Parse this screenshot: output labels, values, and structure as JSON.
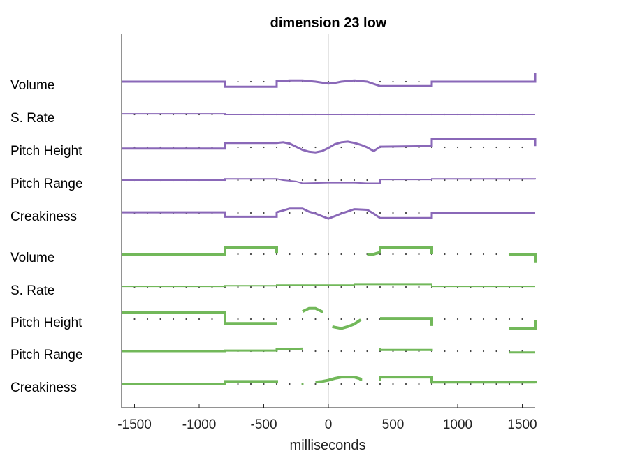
{
  "chart_data": {
    "type": "line",
    "title": "dimension 23 low",
    "xlabel": "milliseconds",
    "ylabel": "",
    "xlim": [
      -1600,
      1600
    ],
    "xticks": [
      -1500,
      -1000,
      -500,
      0,
      500,
      1000,
      1500
    ],
    "zero_line": true,
    "colors": {
      "purple": "#8a68b8",
      "green": "#72b85a"
    },
    "rows": [
      {
        "label": "Volume",
        "color": "purple"
      },
      {
        "label": "S. Rate",
        "color": "purple"
      },
      {
        "label": "Pitch Height",
        "color": "purple"
      },
      {
        "label": "Pitch Range",
        "color": "purple"
      },
      {
        "label": "Creakiness",
        "color": "purple"
      },
      {
        "label": "Volume",
        "color": "green"
      },
      {
        "label": "S. Rate",
        "color": "green"
      },
      {
        "label": "Pitch Height",
        "color": "green"
      },
      {
        "label": "Pitch Range",
        "color": "green"
      },
      {
        "label": "Creakiness",
        "color": "green"
      }
    ],
    "series": [
      {
        "row": 0,
        "color": "purple",
        "width": 3,
        "points": [
          [
            -1600,
            0
          ],
          [
            -800,
            0
          ],
          [
            -800,
            -0.8
          ],
          [
            -400,
            -0.8
          ],
          [
            -400,
            0.1
          ],
          [
            -350,
            0.1
          ],
          [
            -300,
            0.2
          ],
          [
            -200,
            0.2
          ],
          [
            -150,
            0.1
          ],
          [
            -100,
            0
          ],
          [
            0,
            -0.3
          ],
          [
            50,
            -0.2
          ],
          [
            100,
            0
          ],
          [
            200,
            0.2
          ],
          [
            250,
            0.1
          ],
          [
            300,
            0
          ],
          [
            400,
            -0.7
          ],
          [
            800,
            -0.7
          ],
          [
            800,
            0
          ],
          [
            1600,
            0
          ],
          [
            1600,
            1.4
          ]
        ]
      },
      {
        "row": 1,
        "color": "purple",
        "width": 2,
        "points": [
          [
            -1600,
            0.1
          ],
          [
            -800,
            0.1
          ],
          [
            -800,
            0
          ],
          [
            -400,
            0
          ],
          [
            0,
            0
          ],
          [
            400,
            0
          ],
          [
            1600,
            0
          ]
        ]
      },
      {
        "row": 2,
        "color": "purple",
        "width": 3,
        "points": [
          [
            -1600,
            -0.2
          ],
          [
            -800,
            -0.2
          ],
          [
            -800,
            0.7
          ],
          [
            -400,
            0.7
          ],
          [
            -350,
            0.8
          ],
          [
            -300,
            0.6
          ],
          [
            -250,
            0.1
          ],
          [
            -200,
            -0.4
          ],
          [
            -150,
            -0.7
          ],
          [
            -100,
            -0.8
          ],
          [
            -50,
            -0.6
          ],
          [
            0,
            -0.1
          ],
          [
            50,
            0.5
          ],
          [
            100,
            0.8
          ],
          [
            150,
            0.9
          ],
          [
            200,
            0.7
          ],
          [
            250,
            0.4
          ],
          [
            300,
            0
          ],
          [
            350,
            -0.6
          ],
          [
            400,
            0.1
          ],
          [
            800,
            0.2
          ],
          [
            800,
            1.3
          ],
          [
            1600,
            1.3
          ],
          [
            1600,
            0.2
          ]
        ]
      },
      {
        "row": 3,
        "color": "purple",
        "width": 2,
        "points": [
          [
            -1600,
            0
          ],
          [
            -800,
            0
          ],
          [
            -800,
            0.2
          ],
          [
            -400,
            0.2
          ],
          [
            -350,
            0
          ],
          [
            -250,
            -0.2
          ],
          [
            -200,
            -0.5
          ],
          [
            0,
            -0.4
          ],
          [
            100,
            -0.4
          ],
          [
            200,
            -0.4
          ],
          [
            300,
            -0.5
          ],
          [
            400,
            -0.5
          ],
          [
            400,
            0.1
          ],
          [
            800,
            0.1
          ],
          [
            800,
            0.2
          ],
          [
            1600,
            0.2
          ],
          [
            1600,
            0.1
          ]
        ]
      },
      {
        "row": 4,
        "color": "purple",
        "width": 3,
        "points": [
          [
            -1600,
            0.1
          ],
          [
            -800,
            0.1
          ],
          [
            -800,
            -0.6
          ],
          [
            -400,
            -0.6
          ],
          [
            -400,
            0.1
          ],
          [
            -350,
            0.4
          ],
          [
            -300,
            0.7
          ],
          [
            -200,
            0.7
          ],
          [
            -150,
            0.2
          ],
          [
            -100,
            -0.1
          ],
          [
            -50,
            -0.5
          ],
          [
            0,
            -0.9
          ],
          [
            50,
            -0.5
          ],
          [
            100,
            -0.1
          ],
          [
            200,
            0.6
          ],
          [
            300,
            0.5
          ],
          [
            350,
            -0.1
          ],
          [
            400,
            -0.8
          ],
          [
            800,
            -0.8
          ],
          [
            800,
            0
          ],
          [
            1600,
            0
          ]
        ]
      },
      {
        "row": 5,
        "color": "green",
        "width": 4,
        "points": [
          [
            -1600,
            0
          ],
          [
            -800,
            0
          ],
          [
            -800,
            1
          ],
          [
            -400,
            1
          ],
          [
            -400,
            0.1
          ]
        ]
      },
      {
        "row": 5,
        "color": "green",
        "width": 4,
        "points": [
          [
            300,
            -0.1
          ],
          [
            350,
            0
          ],
          [
            400,
            0.3
          ],
          [
            400,
            1
          ],
          [
            800,
            1
          ],
          [
            800,
            0
          ]
        ]
      },
      {
        "row": 5,
        "color": "green",
        "width": 4,
        "points": [
          [
            1400,
            0
          ],
          [
            1600,
            -0.1
          ],
          [
            1600,
            -1.3
          ]
        ]
      },
      {
        "row": 6,
        "color": "green",
        "width": 2,
        "points": [
          [
            -1600,
            0.1
          ],
          [
            -800,
            0.1
          ],
          [
            -800,
            0.2
          ],
          [
            -400,
            0.2
          ],
          [
            -400,
            0.3
          ],
          [
            0,
            0.3
          ],
          [
            200,
            0.3
          ],
          [
            200,
            0.4
          ],
          [
            800,
            0.4
          ],
          [
            800,
            0.1
          ],
          [
            1600,
            0.1
          ]
        ]
      },
      {
        "row": 7,
        "color": "green",
        "width": 4,
        "points": [
          [
            -1600,
            1
          ],
          [
            -800,
            1
          ],
          [
            -800,
            -0.7
          ],
          [
            -400,
            -0.7
          ]
        ]
      },
      {
        "row": 7,
        "color": "green",
        "width": 4,
        "points": [
          [
            -200,
            1.2
          ],
          [
            -150,
            1.7
          ],
          [
            -100,
            1.7
          ],
          [
            -50,
            1.2
          ],
          [
            -50,
            1
          ]
        ]
      },
      {
        "row": 7,
        "color": "green",
        "width": 4,
        "points": [
          [
            30,
            -1.2
          ],
          [
            50,
            -1.3
          ],
          [
            100,
            -1.5
          ],
          [
            150,
            -1.2
          ],
          [
            200,
            -0.8
          ],
          [
            250,
            -0.1
          ]
        ]
      },
      {
        "row": 7,
        "color": "green",
        "width": 4,
        "points": [
          [
            400,
            0.1
          ],
          [
            800,
            0.1
          ],
          [
            800,
            -1.1
          ]
        ]
      },
      {
        "row": 7,
        "color": "green",
        "width": 4,
        "points": [
          [
            1400,
            -1.5
          ],
          [
            1600,
            -1.5
          ],
          [
            1600,
            -0.2
          ]
        ]
      },
      {
        "row": 8,
        "color": "green",
        "width": 3,
        "points": [
          [
            -1600,
            0
          ],
          [
            -800,
            0
          ],
          [
            -800,
            0.1
          ],
          [
            -400,
            0.1
          ],
          [
            -400,
            0.3
          ],
          [
            -200,
            0.4
          ]
        ]
      },
      {
        "row": 8,
        "color": "green",
        "width": 3,
        "points": [
          [
            400,
            0.5
          ],
          [
            400,
            0.2
          ],
          [
            800,
            0.2
          ],
          [
            800,
            0
          ]
        ]
      },
      {
        "row": 8,
        "color": "green",
        "width": 3,
        "points": [
          [
            1400,
            -0.2
          ],
          [
            1600,
            -0.2
          ]
        ]
      },
      {
        "row": 9,
        "color": "green",
        "width": 4,
        "points": [
          [
            -1600,
            0
          ],
          [
            -800,
            0
          ],
          [
            -800,
            0.4
          ],
          [
            -400,
            0.4
          ],
          [
            -400,
            0.1
          ]
        ]
      },
      {
        "row": 9,
        "color": "green",
        "width": 3,
        "points": [
          [
            -200,
            -0.1
          ],
          [
            -200,
            0.1
          ]
        ]
      },
      {
        "row": 9,
        "color": "green",
        "width": 4,
        "points": [
          [
            -100,
            0.3
          ],
          [
            -50,
            0.4
          ],
          [
            0,
            0.6
          ],
          [
            50,
            0.9
          ],
          [
            100,
            1.1
          ],
          [
            200,
            1.1
          ],
          [
            250,
            0.8
          ],
          [
            250,
            0.5
          ]
        ]
      },
      {
        "row": 9,
        "color": "green",
        "width": 4,
        "points": [
          [
            400,
            0.5
          ],
          [
            400,
            1.1
          ],
          [
            800,
            1.1
          ],
          [
            800,
            0.3
          ],
          [
            1600,
            0.3
          ],
          [
            1600,
            0.1
          ]
        ]
      }
    ]
  }
}
